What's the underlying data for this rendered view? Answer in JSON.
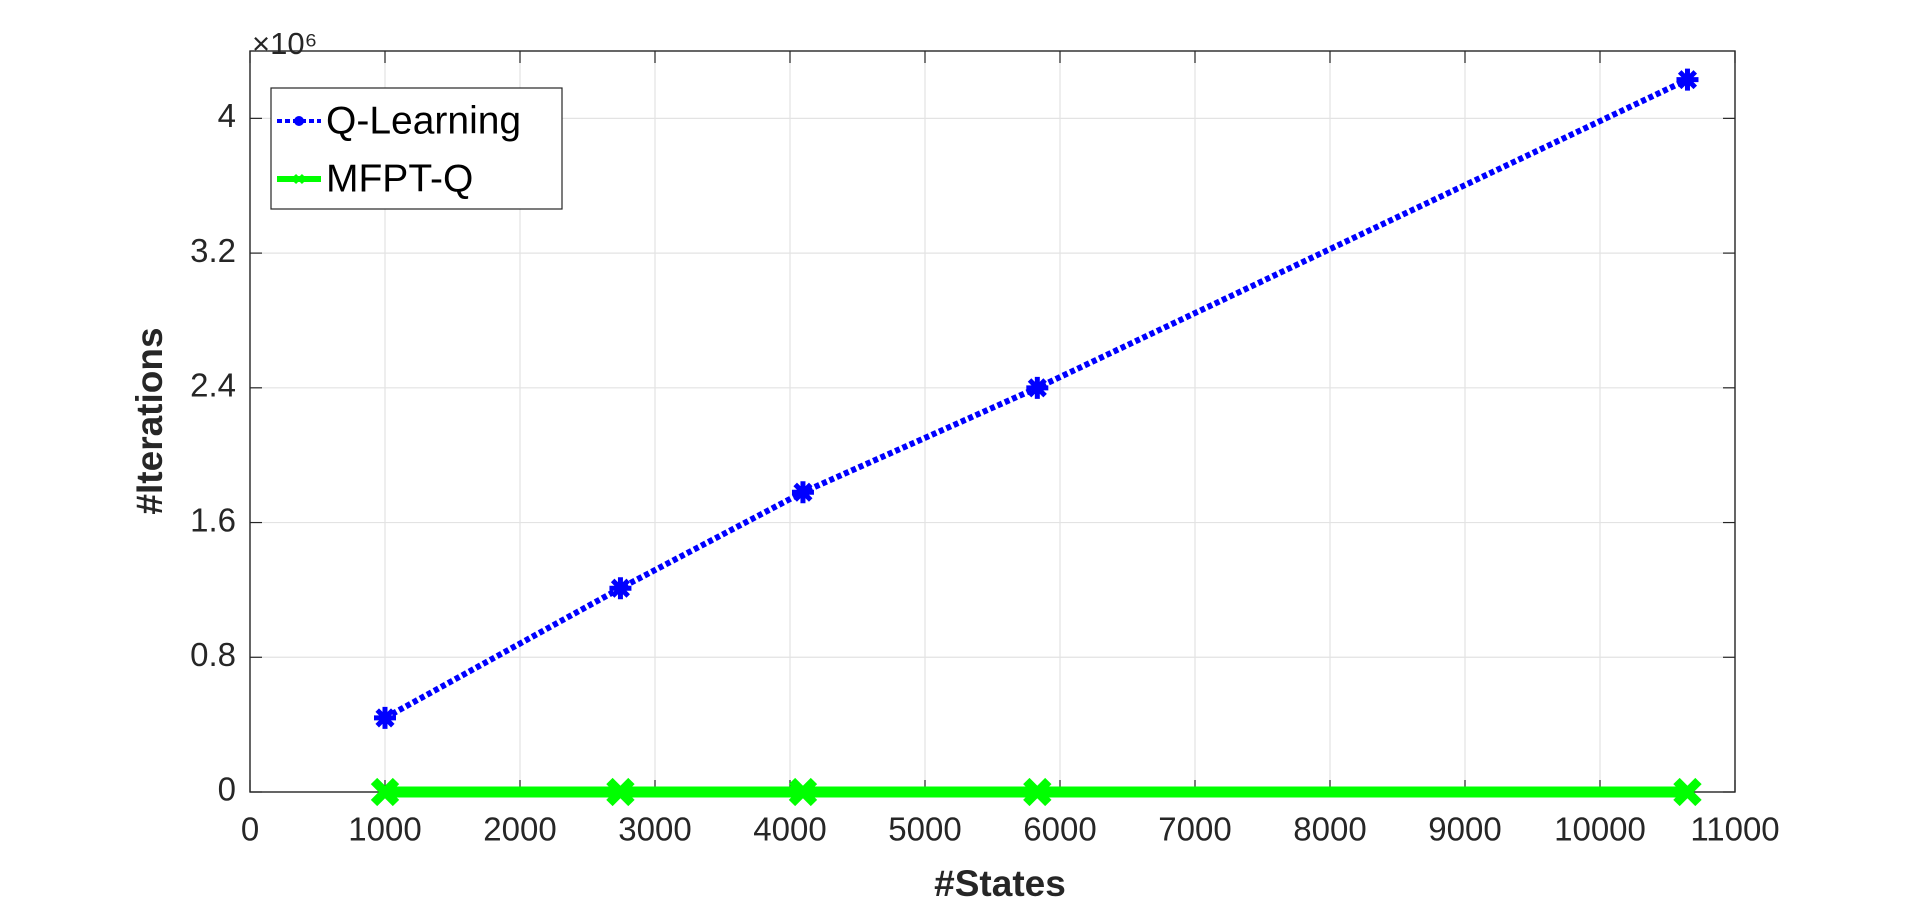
{
  "chart_data": {
    "type": "line",
    "x_label": "#States",
    "y_label": "#Iterations",
    "y_multiplier": "×10⁶",
    "x": [
      1000,
      2744,
      4096,
      5832,
      10648
    ],
    "series": [
      {
        "name": "Q-Learning",
        "color": "#0000ff",
        "values": [
          0.44,
          1.21,
          1.78,
          2.4,
          4.23
        ]
      },
      {
        "name": "MFPT-Q",
        "color": "#00ff00",
        "values": [
          0,
          0,
          0,
          0,
          0
        ]
      }
    ],
    "xlim": [
      0,
      11000
    ],
    "xticks": [
      0,
      1000,
      2000,
      3000,
      4000,
      5000,
      6000,
      7000,
      8000,
      9000,
      10000,
      11000
    ],
    "ylim": [
      0,
      4.4
    ],
    "yticks": [
      0,
      0.8,
      1.6,
      2.4,
      3.2,
      4
    ],
    "grid": true,
    "legend": "upper-left"
  }
}
